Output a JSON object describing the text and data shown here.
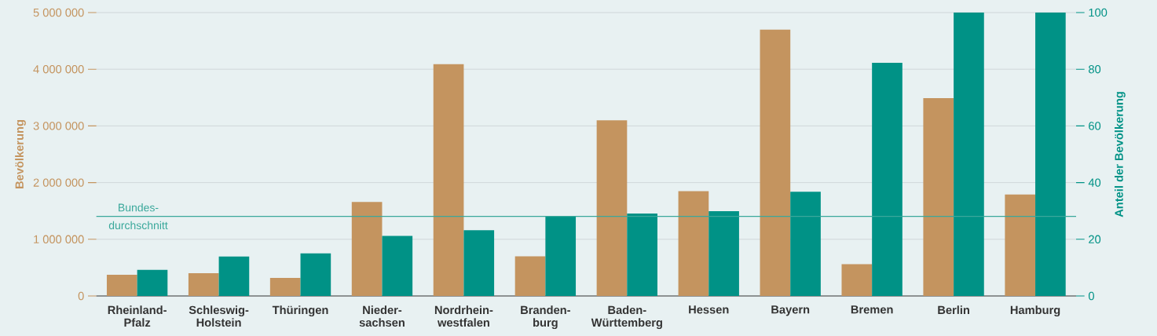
{
  "chart_data": {
    "type": "bar",
    "ylabel": "Bevölkerung",
    "y2label": "Anteil der Bevölkerung",
    "categories": [
      "Rheinland-Pfalz",
      "Schleswig-Holstein",
      "Thüringen",
      "Nieder-sachsen",
      "Nordrhein-westfalen",
      "Branden-burg",
      "Baden-Württemberg",
      "Hessen",
      "Bayern",
      "Bremen",
      "Berlin",
      "Hamburg"
    ],
    "series": [
      {
        "color": "#c4945f",
        "values": [
          375000,
          400000,
          320000,
          1660000,
          4090000,
          700000,
          3100000,
          1850000,
          4700000,
          560000,
          3490000,
          1790000
        ]
      },
      {
        "color": "#009286",
        "axis": "y2",
        "values": [
          9.2,
          13.9,
          15,
          21.2,
          23.2,
          28.2,
          29.1,
          29.9,
          36.8,
          82.3,
          100,
          100
        ]
      }
    ],
    "ylim": [
      0,
      5000000
    ],
    "yticks": [
      0,
      {
        "value": 1000000,
        "label": "1 000 000"
      },
      {
        "value": 2000000,
        "label": "2 000 000"
      },
      {
        "value": 3000000,
        "label": "3 000 000"
      },
      {
        "value": 4000000,
        "label": "4 000 000"
      },
      {
        "value": 5000000,
        "label": "5 000 000"
      }
    ],
    "y2lim": [
      0,
      100
    ],
    "y2ticks": [
      0,
      20,
      40,
      60,
      80,
      100
    ],
    "grid": "y",
    "ref_lines": [
      {
        "axis": "y2",
        "value": 28.1,
        "label": "Bundes-durchschnitt",
        "color": "#3aa89b"
      }
    ]
  }
}
